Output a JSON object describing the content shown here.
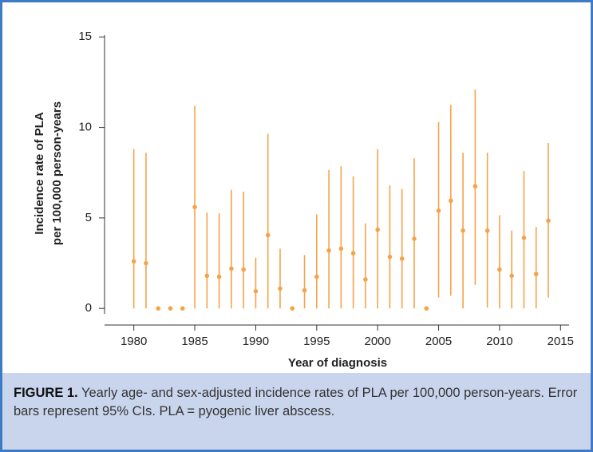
{
  "chart_data": {
    "type": "errorbar",
    "xlabel": "Year of diagnosis",
    "ylabel": [
      "Incidence rate of PLA",
      "per 100,000 person-years"
    ],
    "x": [
      1980,
      1981,
      1982,
      1983,
      1984,
      1985,
      1986,
      1987,
      1988,
      1989,
      1990,
      1991,
      1992,
      1993,
      1994,
      1995,
      1996,
      1997,
      1998,
      1999,
      2000,
      2001,
      2002,
      2003,
      2004,
      2005,
      2006,
      2007,
      2008,
      2009,
      2010,
      2011,
      2012,
      2013,
      2014
    ],
    "series": [
      {
        "color": "#f5a34a",
        "values": [
          2.6,
          2.5,
          0,
          0,
          0,
          5.6,
          1.8,
          1.75,
          2.2,
          2.15,
          0.95,
          4.05,
          1.1,
          0,
          1.0,
          1.75,
          3.2,
          3.3,
          3.05,
          1.6,
          4.35,
          2.85,
          2.75,
          3.85,
          0,
          5.4,
          5.95,
          4.3,
          6.75,
          4.3,
          2.15,
          1.8,
          3.9,
          1.9,
          4.85
        ],
        "lower": [
          0,
          0,
          null,
          null,
          null,
          0,
          0,
          0,
          0,
          0,
          0,
          0,
          0,
          null,
          0,
          0,
          0,
          0,
          0,
          0,
          0,
          0,
          0,
          0,
          null,
          0.6,
          0.7,
          0,
          1.3,
          0.05,
          0,
          0,
          0,
          0,
          0.6
        ],
        "upper": [
          8.8,
          8.6,
          null,
          null,
          null,
          11.2,
          5.3,
          5.25,
          6.55,
          6.45,
          2.8,
          9.65,
          3.3,
          null,
          2.95,
          5.2,
          7.65,
          7.85,
          7.3,
          4.7,
          8.8,
          6.8,
          6.6,
          8.3,
          null,
          10.3,
          11.25,
          8.6,
          12.1,
          8.6,
          5.15,
          4.3,
          7.6,
          4.5,
          9.15
        ]
      }
    ],
    "xlim": [
      1977.6,
      2015.7
    ],
    "xticks": [
      1980,
      1985,
      1990,
      1995,
      2000,
      2005,
      2010,
      2015
    ],
    "ylim": [
      -0.3,
      15.1
    ],
    "yticks": [
      0,
      5,
      10,
      15
    ]
  },
  "caption": {
    "label": "FIGURE 1.",
    "text": "Yearly age- and sex-adjusted incidence rates of PLA per 100,000 person-years. Error bars represent 95% CIs. PLA = pyogenic liver abscess."
  }
}
